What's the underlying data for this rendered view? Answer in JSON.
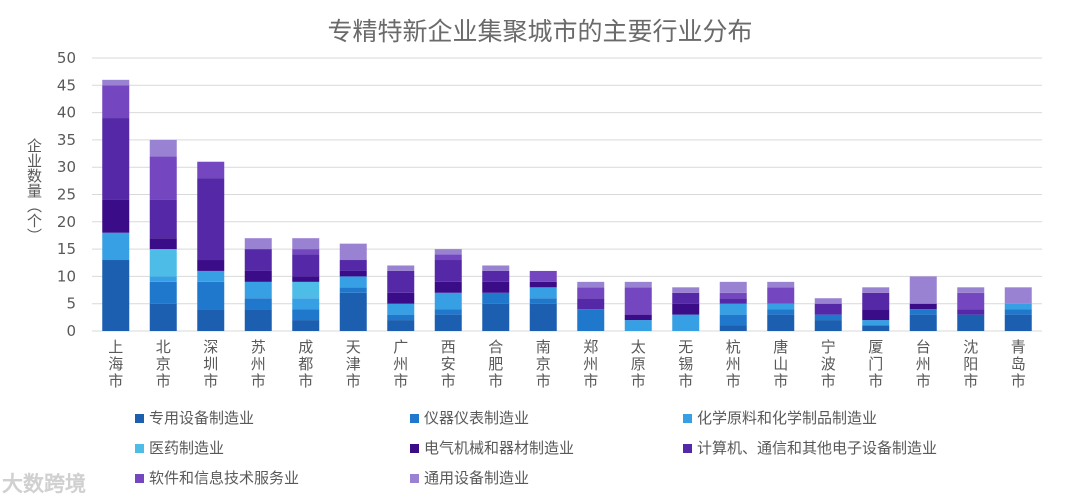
{
  "chart_data": {
    "type": "bar",
    "stacked": true,
    "title": "专精特新企业集聚城市的主要行业分布",
    "xlabel": "",
    "ylabel": "企业数量（个）",
    "ylim": [
      0,
      50
    ],
    "yticks": [
      0,
      5,
      10,
      15,
      20,
      25,
      30,
      35,
      40,
      45,
      50
    ],
    "grid": true,
    "legend_position": "bottom",
    "categories": [
      "上海市",
      "北京市",
      "深圳市",
      "苏州市",
      "成都市",
      "天津市",
      "广州市",
      "西安市",
      "合肥市",
      "南京市",
      "郑州市",
      "太原市",
      "无锡市",
      "杭州市",
      "唐山市",
      "宁波市",
      "厦门市",
      "台州市",
      "沈阳市",
      "青岛市"
    ],
    "series": [
      {
        "name": "专用设备制造业",
        "color": "#1c5fb0",
        "values": [
          13,
          5,
          4,
          4,
          2,
          7,
          2,
          3,
          5,
          5,
          0,
          0,
          0,
          1,
          3,
          2,
          1,
          3,
          3,
          3
        ]
      },
      {
        "name": "仪器仪表制造业",
        "color": "#1f78cc",
        "values": [
          0,
          4,
          5,
          2,
          2,
          1,
          1,
          1,
          2,
          1,
          4,
          0,
          0,
          2,
          1,
          1,
          0,
          1,
          0,
          1
        ]
      },
      {
        "name": "化学原料和化学制品制造业",
        "color": "#37a0e4",
        "values": [
          5,
          1,
          2,
          3,
          2,
          2,
          2,
          3,
          0,
          2,
          0,
          2,
          3,
          2,
          1,
          0,
          1,
          0,
          0,
          1
        ]
      },
      {
        "name": "医药制造业",
        "color": "#4dbde8",
        "values": [
          0,
          5,
          0,
          0,
          3,
          0,
          0,
          0,
          0,
          0,
          0,
          0,
          0,
          0,
          0,
          0,
          0,
          0,
          0,
          0
        ]
      },
      {
        "name": "电气机械和器材制造业",
        "color": "#3b0c88",
        "values": [
          6,
          2,
          2,
          2,
          1,
          1,
          2,
          2,
          2,
          1,
          0,
          1,
          2,
          0,
          0,
          0,
          2,
          1,
          0,
          0
        ]
      },
      {
        "name": "计算机、通信和其他电子设备制造业",
        "color": "#5428a6",
        "values": [
          15,
          7,
          15,
          4,
          4,
          2,
          4,
          4,
          2,
          0,
          2,
          0,
          2,
          1,
          0,
          2,
          3,
          0,
          1,
          0
        ]
      },
      {
        "name": "软件和信息技术服务业",
        "color": "#7446c0",
        "values": [
          6,
          8,
          3,
          0,
          1,
          0,
          0,
          1,
          0,
          2,
          2,
          5,
          0,
          1,
          3,
          0,
          0,
          0,
          3,
          0
        ]
      },
      {
        "name": "通用设备制造业",
        "color": "#9a82d2",
        "values": [
          1,
          3,
          0,
          2,
          2,
          3,
          1,
          1,
          1,
          0,
          1,
          1,
          1,
          2,
          1,
          1,
          1,
          5,
          1,
          3
        ]
      }
    ]
  },
  "watermark": "大数跨境"
}
